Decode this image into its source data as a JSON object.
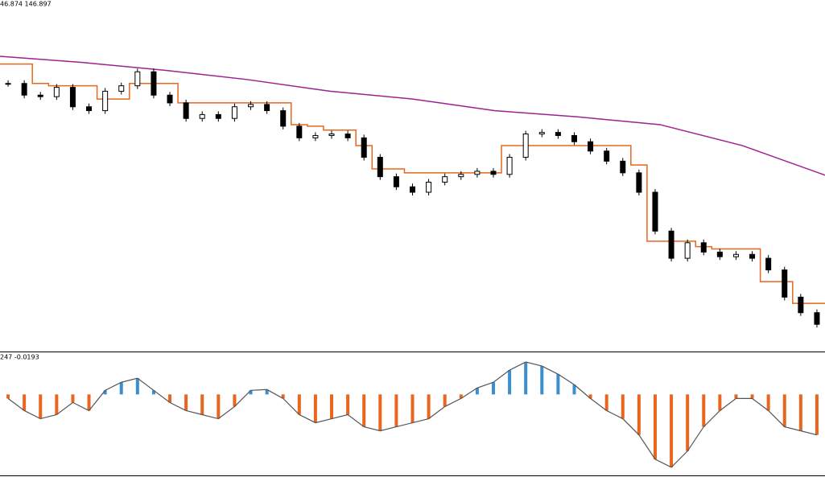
{
  "chart_data": [
    {
      "type": "candlestick",
      "label": "46.874 146.897",
      "close": [
        146.81,
        146.78,
        146.776,
        146.8,
        146.75,
        146.74,
        146.79,
        146.804,
        146.84,
        146.78,
        146.76,
        146.72,
        146.73,
        146.72,
        146.75,
        146.756,
        146.74,
        146.7,
        146.67,
        146.676,
        146.68,
        146.67,
        146.62,
        146.57,
        146.544,
        146.53,
        146.556,
        146.57,
        146.576,
        146.584,
        146.576,
        146.62,
        146.68,
        146.684,
        146.676,
        146.66,
        146.636,
        146.61,
        146.58,
        146.53,
        146.43,
        146.36,
        146.4,
        146.376,
        146.364,
        146.37,
        146.36,
        146.33,
        146.26,
        146.22,
        146.19
      ],
      "stop": [
        146.86,
        146.86,
        146.81,
        146.804,
        146.804,
        146.804,
        146.77,
        146.77,
        146.81,
        146.81,
        146.81,
        146.76,
        146.76,
        146.76,
        146.76,
        146.76,
        146.76,
        146.76,
        146.704,
        146.7,
        146.69,
        146.69,
        146.65,
        146.59,
        146.59,
        146.58,
        146.58,
        146.58,
        146.58,
        146.58,
        146.58,
        146.65,
        146.65,
        146.65,
        146.65,
        146.65,
        146.65,
        146.65,
        146.65,
        146.6,
        146.404,
        146.404,
        146.404,
        146.39,
        146.384,
        146.384,
        146.384,
        146.3,
        146.3,
        146.244,
        146.244
      ],
      "stop_color": "#e8661e",
      "ma": [
        146.88,
        146.864,
        146.844,
        146.82,
        146.79,
        146.77,
        146.74,
        146.724,
        146.704,
        146.65,
        146.574
      ],
      "ma_color": "#a0208e",
      "ylim": [
        146.12,
        147.0
      ]
    },
    {
      "type": "histogram",
      "label": "247 -0.0193",
      "values": [
        -0.005,
        -0.02,
        -0.03,
        -0.025,
        -0.01,
        -0.02,
        0.005,
        0.015,
        0.02,
        0.005,
        -0.01,
        -0.02,
        -0.025,
        -0.03,
        -0.015,
        0.005,
        0.006,
        -0.005,
        -0.025,
        -0.035,
        -0.03,
        -0.025,
        -0.04,
        -0.045,
        -0.04,
        -0.035,
        -0.03,
        -0.015,
        -0.005,
        0.008,
        0.015,
        0.03,
        0.04,
        0.035,
        0.025,
        0.012,
        -0.005,
        -0.02,
        -0.03,
        -0.05,
        -0.08,
        -0.09,
        -0.07,
        -0.04,
        -0.02,
        -0.005,
        -0.005,
        -0.02,
        -0.04,
        -0.045,
        -0.05
      ],
      "up_color": "#3a8fd0",
      "down_color": "#e8661e",
      "ylim": [
        -0.1,
        0.05
      ]
    }
  ]
}
